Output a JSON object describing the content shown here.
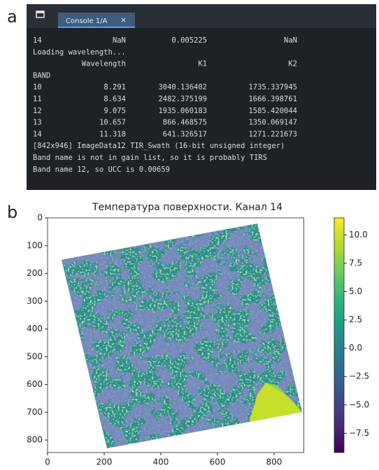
{
  "panel_labels": [
    "a",
    "b"
  ],
  "console": {
    "tab": "Console 1/A",
    "tab_close": "×",
    "prev_row": [
      "14",
      "NaN",
      "0.005225",
      "NaN"
    ],
    "message": "Loading wavelength...",
    "table": {
      "header": [
        "Wavelength",
        "K1",
        "K2"
      ],
      "index_name": "BAND",
      "rows": [
        [
          "10",
          "8.291",
          "3040.136402",
          "1735.337945"
        ],
        [
          "11",
          "8.634",
          "2482.375199",
          "1666.398761"
        ],
        [
          "12",
          "9.075",
          "1935.060183",
          "1585.420044"
        ],
        [
          "13",
          "10.657",
          "866.468575",
          "1350.069147"
        ],
        [
          "14",
          "11.318",
          "641.326517",
          "1271.221673"
        ]
      ]
    },
    "footer": [
      "[842x946] ImageData12 TIR_Swath (16-bit unsigned integer)",
      "Band name is not in gain list, so it is probably TIRS",
      "Band name 12, so UCC is 0.00659"
    ]
  },
  "chart_data": {
    "type": "heatmap",
    "title": "Температура поверхности. Канал 14",
    "xlim": [
      0,
      905
    ],
    "ylim": [
      845,
      0
    ],
    "xticks": [
      0,
      200,
      400,
      600,
      800
    ],
    "yticks": [
      0,
      100,
      200,
      300,
      400,
      500,
      600,
      700,
      800
    ],
    "colormap": "viridis",
    "clim": [
      -9.2,
      11.5
    ],
    "cticks": [
      {
        "value": 10,
        "label": "10.0"
      },
      7.5,
      {
        "value": 5,
        "label": "5.0"
      },
      2.5,
      {
        "value": 0,
        "label": "0.0"
      },
      {
        "value": -2.5,
        "label": "−2.5"
      },
      {
        "value": -5,
        "label": "−5.0"
      },
      {
        "value": -7.5,
        "label": "−7.5"
      }
    ]
  }
}
